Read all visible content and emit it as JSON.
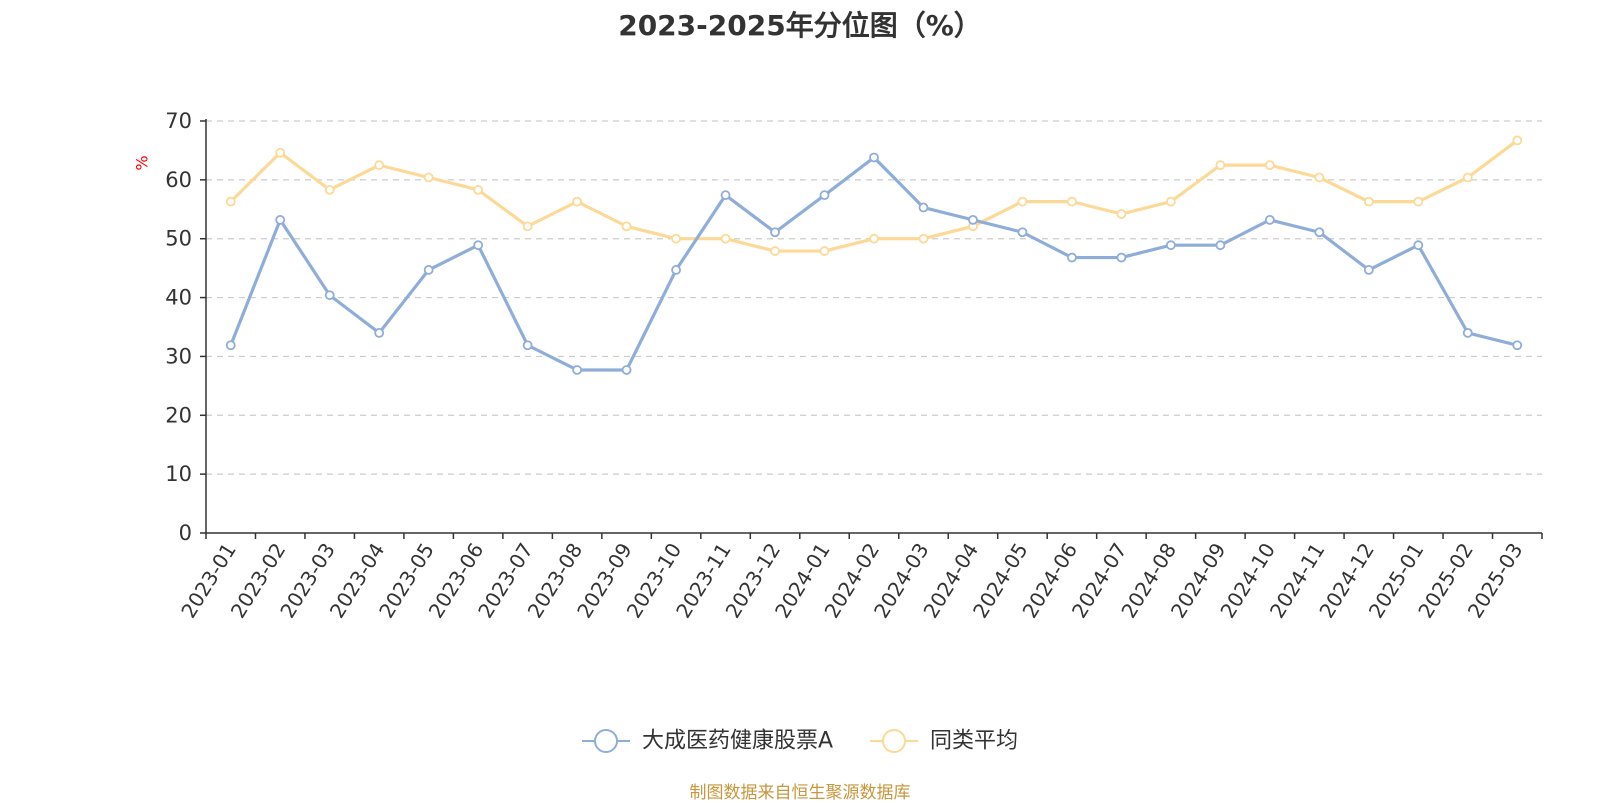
{
  "title": "2023-2025年分位图（%）",
  "source_note": "制图数据来自恒生聚源数据库",
  "colors": {
    "series_1": "#8eadd9",
    "series_2": "#fcd996",
    "axis": "#333333",
    "grid": "#cccccc",
    "ylabel": "#ff0000",
    "source_note": "#c8963c"
  },
  "chart_data": {
    "type": "line",
    "title": "2023-2025年分位图（%）",
    "xlabel": "",
    "ylabel": "%",
    "ylim": [
      0,
      70
    ],
    "yticks": [
      0,
      10,
      20,
      30,
      40,
      50,
      60,
      70
    ],
    "grid": "horizontal dashed",
    "legend_position": "bottom-center",
    "categories": [
      "2023-01",
      "2023-02",
      "2023-03",
      "2023-04",
      "2023-05",
      "2023-06",
      "2023-07",
      "2023-08",
      "2023-09",
      "2023-10",
      "2023-11",
      "2023-12",
      "2024-01",
      "2024-02",
      "2024-03",
      "2024-04",
      "2024-05",
      "2024-06",
      "2024-07",
      "2024-08",
      "2024-09",
      "2024-10",
      "2024-11",
      "2024-12",
      "2025-01",
      "2025-02",
      "2025-03"
    ],
    "series": [
      {
        "name": "大成医药健康股票A",
        "color": "#8eadd9",
        "values": [
          31.9,
          53.2,
          40.4,
          34.0,
          44.7,
          48.9,
          31.9,
          27.7,
          27.7,
          44.7,
          57.4,
          51.1,
          57.4,
          63.8,
          55.3,
          53.2,
          51.1,
          46.8,
          46.8,
          48.9,
          48.9,
          53.2,
          51.1,
          44.7,
          48.9,
          34.0,
          31.9
        ]
      },
      {
        "name": "同类平均",
        "color": "#fcd996",
        "values": [
          56.3,
          64.6,
          58.3,
          62.5,
          60.4,
          58.3,
          52.1,
          56.3,
          52.1,
          50.0,
          50.0,
          47.9,
          47.9,
          50.0,
          50.0,
          52.1,
          56.3,
          56.3,
          54.2,
          56.3,
          62.5,
          62.5,
          60.4,
          56.3,
          56.3,
          60.4,
          66.7
        ]
      }
    ]
  }
}
